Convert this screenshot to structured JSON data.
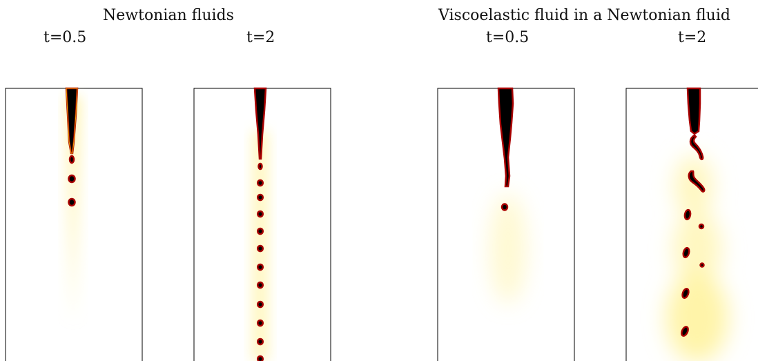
{
  "groups": [
    {
      "title": "Newtonian fluids",
      "panels": [
        {
          "time": "t=0.5"
        },
        {
          "time": "t=2"
        }
      ]
    },
    {
      "title": "Viscoelastic fluid in a Newtonian fluid",
      "panels": [
        {
          "time": "t=0.5"
        },
        {
          "time": "t=2"
        }
      ]
    }
  ],
  "colors": {
    "fluid_core": "#000000",
    "fluid_edge": "#b00000",
    "interface": "#ffd000",
    "wake": "#fff6b0",
    "frame": "#000000"
  }
}
